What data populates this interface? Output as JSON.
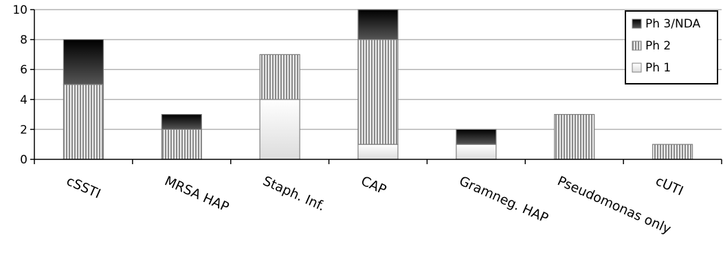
{
  "chart_data": {
    "type": "bar",
    "stacked": true,
    "categories": [
      "cSSTI",
      "MRSA HAP",
      "Staph. Inf.",
      "CAP",
      "Gramneg. HAP",
      "Pseudomonas only",
      "cUTI"
    ],
    "series": [
      {
        "name": "Ph 1",
        "values": [
          0,
          0,
          4,
          1,
          1,
          0,
          0
        ],
        "pattern": "gradient",
        "color": "#f2f2f2"
      },
      {
        "name": "Ph 2",
        "values": [
          5,
          2,
          3,
          7,
          0,
          3,
          1
        ],
        "pattern": "vertical-stripes",
        "color": "#9a9a9a"
      },
      {
        "name": "Ph 3/NDA",
        "values": [
          3,
          1,
          0,
          2,
          1,
          0,
          0
        ],
        "pattern": "dark-gradient",
        "color": "#1a1a1a"
      }
    ],
    "legend_order": [
      "Ph 3/NDA",
      "Ph 2",
      "Ph 1"
    ],
    "ylim": [
      0,
      10
    ],
    "yticks": [
      0,
      2,
      4,
      6,
      8,
      10
    ],
    "grid": true,
    "legend_position": "top-right"
  }
}
